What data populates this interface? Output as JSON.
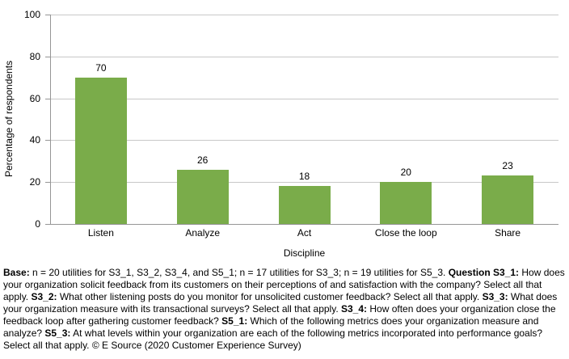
{
  "chart_data": {
    "type": "bar",
    "title": "",
    "categories": [
      "Listen",
      "Analyze",
      "Act",
      "Close the loop",
      "Share"
    ],
    "values": [
      70,
      26,
      18,
      20,
      23
    ],
    "xlabel": "Discipline",
    "ylabel": "Percentage of respondents",
    "ylim": [
      0,
      100
    ],
    "yticks": [
      0,
      20,
      40,
      60,
      80,
      100
    ],
    "grid": true,
    "data_labels": true,
    "legend": "none",
    "bar_color": "#7AAC4A",
    "gridline_color": "#C8C8C8",
    "axis_color": "#969696",
    "text_color": "#000000"
  },
  "footer": {
    "segments": [
      {
        "text": "Base:",
        "bold": true
      },
      {
        "text": " n = 20 utilities for S3_1, S3_2, S3_4, and S5_1; n = 17 utilities for S3_3; n = 19 utilities for S5_3. ",
        "bold": false
      },
      {
        "text": "Question S3_1:",
        "bold": true
      },
      {
        "text": " How does your organization solicit feedback from its customers on their perceptions of and satisfaction with the company? Select all that apply. ",
        "bold": false
      },
      {
        "text": "S3_2:",
        "bold": true
      },
      {
        "text": " What other listening posts do you monitor for unsolicited customer feedback? Select all that apply. ",
        "bold": false
      },
      {
        "text": "S3_3:",
        "bold": true
      },
      {
        "text": " What does your organization measure with its transactional surveys? Select all that apply. ",
        "bold": false
      },
      {
        "text": "S3_4:",
        "bold": true
      },
      {
        "text": " How often does your organization close the feedback loop after gathering customer feedback? ",
        "bold": false
      },
      {
        "text": "S5_1:",
        "bold": true
      },
      {
        "text": " Which of the following metrics does your organization measure and analyze? ",
        "bold": false
      },
      {
        "text": "S5_3:",
        "bold": true
      },
      {
        "text": " At what levels within your organization are each of the following metrics incorporated into performance goals? Select all that apply. © E Source (2020 Customer Experience Survey)",
        "bold": false
      }
    ]
  }
}
